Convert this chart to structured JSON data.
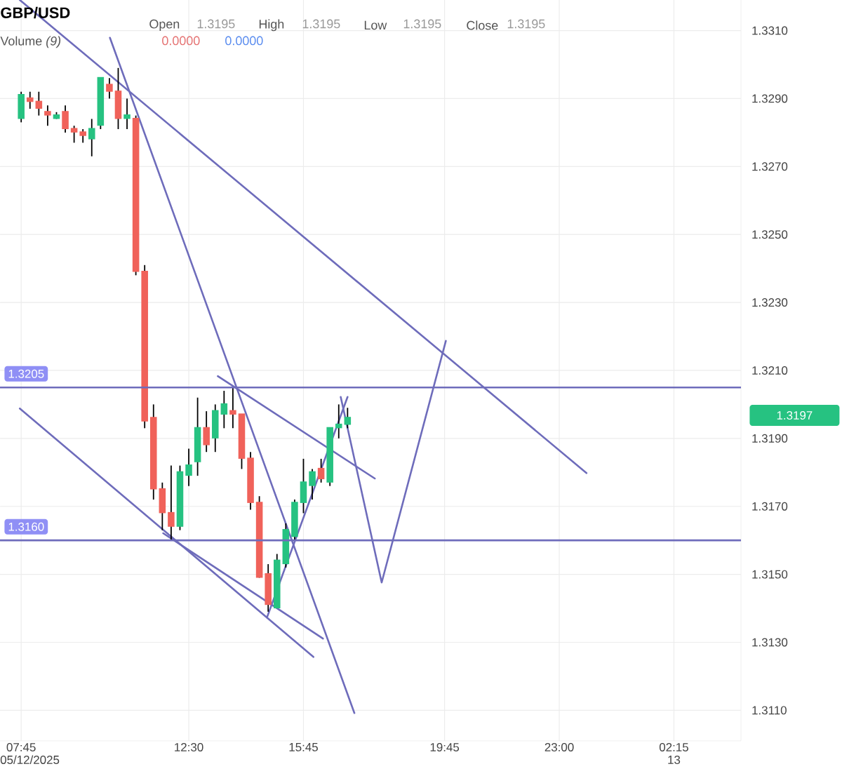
{
  "chart_data": {
    "type": "candlestick",
    "title": "GBP/USD",
    "annotations": [
      "Open",
      "1.3195",
      "High",
      "1.3195",
      "Low",
      "1.3195",
      "Close",
      "1.3195",
      "Volume *(9)*",
      "0.0000",
      "0.0000",
      "1.3197"
    ],
    "x": [
      7.75,
      8.0,
      8.25,
      8.5,
      8.75,
      9.0,
      9.25,
      9.5,
      9.75,
      10.0,
      10.25,
      10.5,
      10.75,
      11.0,
      11.25,
      11.5,
      11.75,
      12.0,
      12.25,
      12.5,
      12.75,
      13.0,
      13.25,
      13.5,
      13.75,
      14.0,
      14.25,
      14.5,
      14.75,
      15.0,
      15.25,
      15.5,
      15.75,
      16.0,
      16.25,
      16.5,
      16.75,
      17.0
    ],
    "ohlc": [
      [
        1.3284,
        1.3292,
        1.3283,
        1.3291
      ],
      [
        1.329,
        1.3292,
        1.3287,
        1.3289
      ],
      [
        1.3289,
        1.3292,
        1.3285,
        1.3287
      ],
      [
        1.3286,
        1.3288,
        1.3282,
        1.3285
      ],
      [
        1.3284,
        1.3286,
        1.3284,
        1.3285
      ],
      [
        1.3286,
        1.3288,
        1.328,
        1.3281
      ],
      [
        1.3281,
        1.3282,
        1.3277,
        1.328
      ],
      [
        1.328,
        1.3281,
        1.3277,
        1.3279
      ],
      [
        1.3278,
        1.3284,
        1.3273,
        1.3281
      ],
      [
        1.3282,
        1.3296,
        1.3281,
        1.3296
      ],
      [
        1.3294,
        1.3296,
        1.329,
        1.3292
      ],
      [
        1.3292,
        1.3299,
        1.3281,
        1.3284
      ],
      [
        1.3284,
        1.329,
        1.3281,
        1.3285
      ],
      [
        1.3284,
        1.3285,
        1.3238,
        1.3239
      ],
      [
        1.3239,
        1.3241,
        1.3193,
        1.3195
      ],
      [
        1.3196,
        1.32,
        1.3172,
        1.3175
      ],
      [
        1.3175,
        1.3177,
        1.3163,
        1.3168
      ],
      [
        1.3168,
        1.3182,
        1.316,
        1.3164
      ],
      [
        1.3164,
        1.3182,
        1.3163,
        1.318
      ],
      [
        1.3179,
        1.3187,
        1.3176,
        1.3182
      ],
      [
        1.3183,
        1.3202,
        1.3179,
        1.3193
      ],
      [
        1.3193,
        1.3198,
        1.3186,
        1.3188
      ],
      [
        1.319,
        1.32,
        1.3186,
        1.3198
      ],
      [
        1.3197,
        1.3204,
        1.3193,
        1.32
      ],
      [
        1.3198,
        1.3205,
        1.3193,
        1.3197
      ],
      [
        1.3197,
        1.3197,
        1.3181,
        1.3184
      ],
      [
        1.3184,
        1.3186,
        1.3169,
        1.3171
      ],
      [
        1.3171,
        1.3173,
        1.3149,
        1.3149
      ],
      [
        1.315,
        1.3153,
        1.3139,
        1.3141
      ],
      [
        1.314,
        1.3156,
        1.314,
        1.3154
      ],
      [
        1.3153,
        1.3165,
        1.3152,
        1.3163
      ],
      [
        1.3161,
        1.3172,
        1.316,
        1.3171
      ],
      [
        1.3171,
        1.3184,
        1.3168,
        1.3177
      ],
      [
        1.3176,
        1.3181,
        1.3172,
        1.318
      ],
      [
        1.3181,
        1.3184,
        1.3177,
        1.3178
      ],
      [
        1.3177,
        1.3193,
        1.3176,
        1.3193
      ],
      [
        1.3193,
        1.32,
        1.319,
        1.3194
      ],
      [
        1.3194,
        1.3199,
        1.3193,
        1.3196
      ]
    ],
    "colors": [
      "#26c281",
      "#f0625a",
      "#f0625a",
      "#f0625a",
      "#26c281",
      "#f0625a",
      "#f0625a",
      "#f0625a",
      "#26c281",
      "#26c281",
      "#f0625a",
      "#f0625a",
      "#26c281",
      "#f0625a",
      "#f0625a",
      "#f0625a",
      "#f0625a",
      "#f0625a",
      "#26c281",
      "#26c281",
      "#26c281",
      "#f0625a",
      "#26c281",
      "#26c281",
      "#f0625a",
      "#f0625a",
      "#f0625a",
      "#f0625a",
      "#f0625a",
      "#26c281",
      "#26c281",
      "#26c281",
      "#26c281",
      "#26c281",
      "#f0625a",
      "#26c281",
      "#26c281",
      "#26c281"
    ],
    "series": [
      {
        "type": "line",
        "color": "#6e6cbb",
        "x": [
          7.711,
          23.772
        ],
        "values": [
          1.3319,
          1.31798
        ]
      },
      {
        "type": "line",
        "color": "#6e6cbb",
        "x": [
          10.265,
          17.193
        ],
        "values": [
          1.33079,
          1.31092
        ]
      },
      {
        "type": "line",
        "color": "#6e6cbb",
        "x": [
          7.711,
          16.032
        ],
        "values": [
          1.31988,
          1.31257
        ]
      },
      {
        "type": "line",
        "color": "#6e6cbb",
        "x": [
          11.775,
          16.303
        ],
        "values": [
          1.31621,
          1.31311
        ]
      },
      {
        "type": "line",
        "color": "#6e6cbb",
        "x": [
          14.716,
          17.0
        ],
        "values": [
          1.31373,
          1.32022
        ]
      },
      {
        "type": "line",
        "color": "#6e6cbb",
        "x": [
          13.323,
          17.773
        ],
        "values": [
          1.32083,
          1.31782
        ]
      },
      {
        "type": "line",
        "color": "#6e6cbb",
        "x": [
          16.806,
          17.967,
          19.786
        ],
        "values": [
          1.32022,
          1.31476,
          1.32187
        ]
      }
    ],
    "ref_lines": [
      {
        "axis": "y",
        "value": 1.3205,
        "label": "1.3205",
        "color": "#6e6cbb"
      },
      {
        "axis": "y",
        "value": 1.316,
        "label": "1.3160",
        "color": "#6e6cbb"
      }
    ],
    "xlim": [
      7.15,
      28.15
    ],
    "ylim": [
      1.3101,
      1.3319
    ],
    "xticks": [
      {
        "value": 7.75,
        "label": "07:45 05/12/2025"
      },
      {
        "value": 12.5,
        "label": "12:30"
      },
      {
        "value": 15.75,
        "label": "15:45"
      },
      {
        "value": 19.75,
        "label": "19:45"
      },
      {
        "value": 23.0,
        "label": "23:00"
      },
      {
        "value": 26.25,
        "label": "02:15 13"
      }
    ],
    "yticks": [
      {
        "value": 1.311,
        "label": "1.3110"
      },
      {
        "value": 1.313,
        "label": "1.3130"
      },
      {
        "value": 1.315,
        "label": "1.3150"
      },
      {
        "value": 1.317,
        "label": "1.3170"
      },
      {
        "value": 1.319,
        "label": "1.3190"
      },
      {
        "value": 1.321,
        "label": "1.3210"
      },
      {
        "value": 1.323,
        "label": "1.3230"
      },
      {
        "value": 1.325,
        "label": "1.3250"
      },
      {
        "value": 1.327,
        "label": "1.3270"
      },
      {
        "value": 1.329,
        "label": "1.3290"
      },
      {
        "value": 1.331,
        "label": "1.3310"
      }
    ],
    "grid": true
  }
}
